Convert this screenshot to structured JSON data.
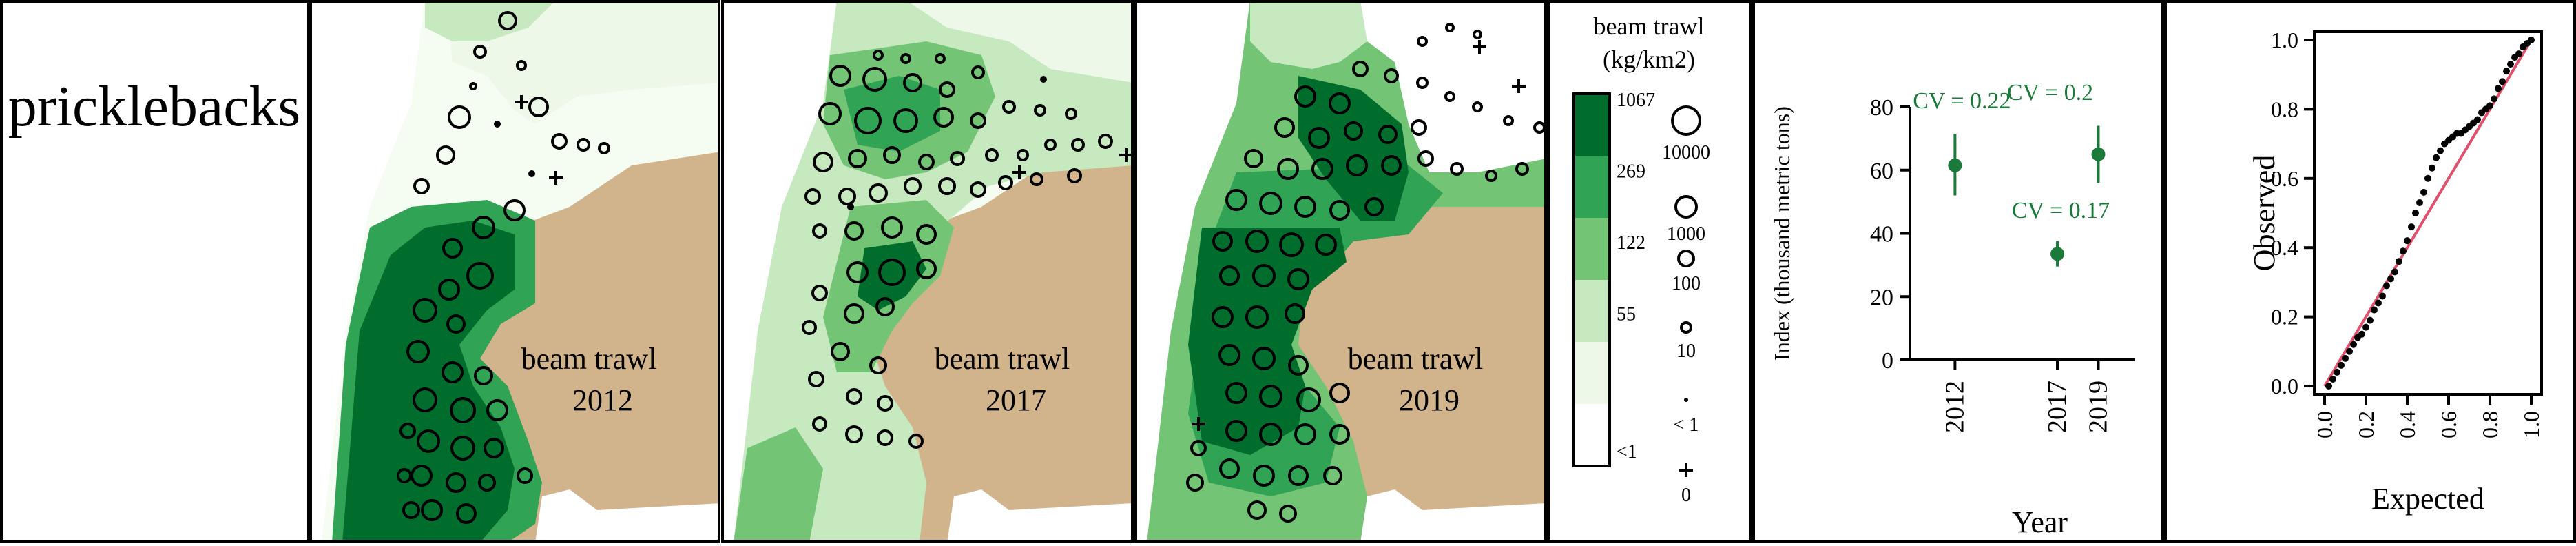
{
  "species_label": "pricklebacks",
  "colors": {
    "land": "#d2b48c",
    "c1": "#ffffff",
    "c2": "#edf8e9",
    "c3": "#c7e9c0",
    "c4": "#74c476",
    "c5": "#31a354",
    "c6": "#006d2c",
    "accent": "#1a7a3a",
    "qq_line": "#e0506a"
  },
  "maps": [
    {
      "survey": "beam trawl",
      "year": "2012"
    },
    {
      "survey": "beam trawl",
      "year": "2017"
    },
    {
      "survey": "beam trawl",
      "year": "2019"
    }
  ],
  "legend": {
    "title_line1": "beam trawl",
    "title_line2": "(kg/km2)",
    "color_breaks": [
      "1067",
      "269",
      "122",
      "55",
      "<1"
    ],
    "bubble_labels": [
      "10000",
      "1000",
      "100",
      "10",
      "< 1",
      "0"
    ]
  },
  "chart_data": [
    {
      "type": "scatter",
      "subtype": "point-errorbar",
      "ylabel": "Index (thousand metric tons)",
      "xlabel": "Year",
      "x": [
        2012,
        2017,
        2019
      ],
      "y": [
        61.5,
        33.5,
        65
      ],
      "lower": [
        52,
        29.5,
        56
      ],
      "upper": [
        71.5,
        37.5,
        74
      ],
      "cv_labels": [
        "CV = 0.22",
        "CV = 0.17",
        "CV = 0.2"
      ],
      "xticks": [
        "2012",
        "2017",
        "2019"
      ],
      "yticks": [
        0,
        20,
        40,
        60,
        80
      ],
      "xlim": [
        2009.8,
        2020.8
      ],
      "ylim": [
        0,
        80
      ]
    },
    {
      "type": "scatter",
      "subtype": "qq",
      "xlabel": "Expected",
      "ylabel": "Observed",
      "xlim": [
        0,
        1
      ],
      "ylim": [
        0,
        1
      ],
      "xticks": [
        "0.0",
        "0.2",
        "0.4",
        "0.6",
        "0.8",
        "1.0"
      ],
      "yticks": [
        "0.0",
        "0.2",
        "0.4",
        "0.6",
        "0.8",
        "1.0"
      ],
      "points": [
        [
          0.02,
          0.0
        ],
        [
          0.04,
          0.02
        ],
        [
          0.06,
          0.04
        ],
        [
          0.08,
          0.06
        ],
        [
          0.1,
          0.08
        ],
        [
          0.12,
          0.1
        ],
        [
          0.14,
          0.12
        ],
        [
          0.16,
          0.14
        ],
        [
          0.18,
          0.15
        ],
        [
          0.2,
          0.17
        ],
        [
          0.22,
          0.19
        ],
        [
          0.24,
          0.22
        ],
        [
          0.26,
          0.24
        ],
        [
          0.28,
          0.26
        ],
        [
          0.3,
          0.29
        ],
        [
          0.32,
          0.31
        ],
        [
          0.34,
          0.33
        ],
        [
          0.36,
          0.36
        ],
        [
          0.38,
          0.39
        ],
        [
          0.4,
          0.42
        ],
        [
          0.42,
          0.46
        ],
        [
          0.44,
          0.5
        ],
        [
          0.46,
          0.53
        ],
        [
          0.48,
          0.56
        ],
        [
          0.5,
          0.6
        ],
        [
          0.52,
          0.63
        ],
        [
          0.54,
          0.66
        ],
        [
          0.56,
          0.68
        ],
        [
          0.58,
          0.7
        ],
        [
          0.6,
          0.71
        ],
        [
          0.62,
          0.72
        ],
        [
          0.64,
          0.73
        ],
        [
          0.66,
          0.73
        ],
        [
          0.68,
          0.74
        ],
        [
          0.7,
          0.75
        ],
        [
          0.72,
          0.76
        ],
        [
          0.74,
          0.77
        ],
        [
          0.76,
          0.79
        ],
        [
          0.78,
          0.8
        ],
        [
          0.8,
          0.81
        ],
        [
          0.82,
          0.83
        ],
        [
          0.84,
          0.86
        ],
        [
          0.86,
          0.88
        ],
        [
          0.88,
          0.91
        ],
        [
          0.9,
          0.93
        ],
        [
          0.92,
          0.95
        ],
        [
          0.94,
          0.96
        ],
        [
          0.96,
          0.98
        ],
        [
          0.98,
          0.99
        ],
        [
          1.0,
          1.0
        ]
      ]
    }
  ]
}
